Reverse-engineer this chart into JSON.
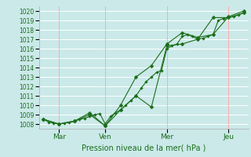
{
  "xlabel": "Pression niveau de la mer( hPa )",
  "bg_color": "#cce9e9",
  "grid_color_h": "#ffffff",
  "grid_color_v": "#ffaaaa",
  "line_color": "#1a6e1a",
  "marker_color": "#1a6e1a",
  "ylim": [
    1007.5,
    1020.5
  ],
  "yticks": [
    1008,
    1009,
    1010,
    1011,
    1012,
    1013,
    1014,
    1015,
    1016,
    1017,
    1018,
    1019,
    1020
  ],
  "x_tick_labels_pos": [
    0.5,
    2.0,
    4.0,
    6.0
  ],
  "x_tick_labels": [
    "Mar",
    "Ven",
    "Mer",
    "Jeu"
  ],
  "x_vlines": [
    0.5,
    2.0,
    4.0,
    6.0
  ],
  "xlim": [
    -0.15,
    6.65
  ],
  "series1": {
    "x": [
      0.0,
      0.17,
      0.33,
      0.5,
      0.67,
      0.83,
      1.0,
      1.17,
      1.33,
      1.5,
      1.67,
      1.83,
      2.0,
      2.17,
      2.33,
      2.5,
      2.67,
      2.83,
      3.0,
      3.17,
      3.33,
      3.5,
      3.67,
      3.83,
      4.0,
      4.17,
      4.33,
      4.5,
      4.67,
      4.83,
      5.0,
      5.17,
      5.33,
      5.5,
      5.67,
      5.83,
      6.0,
      6.17,
      6.33,
      6.5
    ],
    "y": [
      1008.5,
      1008.2,
      1008.1,
      1008.0,
      1008.1,
      1008.2,
      1008.3,
      1008.5,
      1008.6,
      1008.8,
      1009.0,
      1009.1,
      1008.0,
      1008.8,
      1009.2,
      1009.5,
      1010.0,
      1010.5,
      1011.0,
      1011.8,
      1012.5,
      1013.0,
      1013.5,
      1013.7,
      1016.0,
      1016.3,
      1016.5,
      1017.3,
      1017.5,
      1017.3,
      1017.0,
      1017.1,
      1017.3,
      1017.5,
      1019.0,
      1019.2,
      1019.3,
      1019.4,
      1019.6,
      1019.8
    ]
  },
  "series2": {
    "x": [
      0.0,
      0.5,
      1.0,
      1.5,
      2.0,
      2.5,
      3.0,
      3.5,
      4.0,
      4.5,
      5.0,
      5.5,
      6.0,
      6.5
    ],
    "y": [
      1008.5,
      1008.0,
      1008.3,
      1009.0,
      1007.8,
      1009.5,
      1011.0,
      1009.8,
      1016.3,
      1016.5,
      1017.0,
      1019.3,
      1019.3,
      1019.8
    ]
  },
  "series3": {
    "x": [
      0.0,
      0.5,
      1.0,
      1.5,
      2.0,
      2.5,
      3.0,
      3.5,
      4.0,
      4.5,
      5.0,
      5.5,
      6.0,
      6.5
    ],
    "y": [
      1008.5,
      1008.0,
      1008.3,
      1009.2,
      1007.8,
      1010.0,
      1013.0,
      1014.2,
      1016.5,
      1017.7,
      1017.2,
      1017.5,
      1019.4,
      1020.0
    ]
  }
}
